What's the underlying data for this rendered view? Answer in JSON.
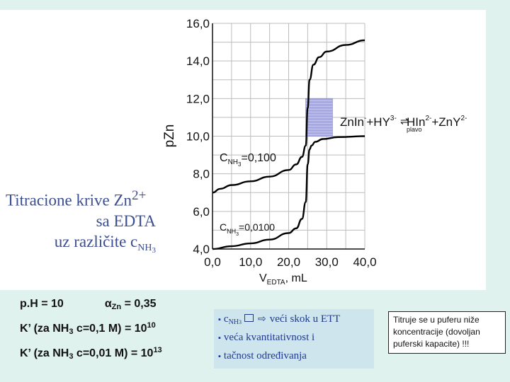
{
  "chart_data": {
    "type": "line",
    "xlabel": "V",
    "xlabel_sub": "EDTA",
    "xlabel_unit": ", mL",
    "ylabel": "pZn",
    "xlim": [
      0,
      40
    ],
    "ylim": [
      4,
      16
    ],
    "x_ticks": [
      "0,0",
      "10,0",
      "20,0",
      "30,0",
      "40,0"
    ],
    "y_ticks": [
      "4,0",
      "6,0",
      "8,0",
      "10,0",
      "12,0",
      "14,0",
      "16,0"
    ],
    "grid": true,
    "series": [
      {
        "name": "C NH3 = 0,100",
        "label_main": "C",
        "label_sub": "NH",
        "label_subsub": "3",
        "label_value": "=0,100",
        "x": [
          0,
          2,
          5,
          10,
          15,
          20,
          22,
          23.5,
          24.5,
          25,
          25.5,
          26.5,
          28,
          30,
          35,
          40
        ],
        "y": [
          7.0,
          7.2,
          7.4,
          7.6,
          7.85,
          8.2,
          8.5,
          8.9,
          9.5,
          11.5,
          13.0,
          13.8,
          14.2,
          14.5,
          14.85,
          15.1
        ]
      },
      {
        "name": "C NH3 = 0,0100",
        "label_main": "C",
        "label_sub": "NH",
        "label_subsub": "3",
        "label_value": "=0,0100",
        "x": [
          0,
          5,
          10,
          15,
          20,
          22,
          23.5,
          24.5,
          25,
          25.5,
          26,
          27,
          29,
          33,
          40
        ],
        "y": [
          4.0,
          4.15,
          4.3,
          4.5,
          4.85,
          5.1,
          5.6,
          6.5,
          8.5,
          9.3,
          9.5,
          9.7,
          9.85,
          9.95,
          10.0
        ]
      }
    ],
    "indicator_band": {
      "x": [
        24.5,
        31.5
      ],
      "y": [
        10.0,
        12.0
      ]
    },
    "annotation": {
      "reactant1": "ZnIn",
      "reactant1_charge": "-",
      "plus1": "+HY",
      "reactant2_charge": "3-",
      "product1": "HIn",
      "product1_charge": "2-",
      "plus2": "+ZnY",
      "product2_charge": "2-",
      "color_note": "plavo"
    }
  },
  "title": {
    "line1": "Titracione krive Zn",
    "line1_sup": "2+",
    "line2": "sa EDTA",
    "line3": "uz različite c",
    "line3_sub": "NH",
    "line3_subsub": "3"
  },
  "notes": {
    "ph": "p.H = 10",
    "alpha": "α",
    "alpha_sub": "Zn",
    "alpha_value": "= 0,35",
    "k1_prefix": "K’  (za NH",
    "k1_sub": "3",
    "k1_mid": "c=0,1 M) = 10",
    "k1_sup": "10",
    "k2_prefix": "K’  (za NH",
    "k2_sub": "3",
    "k2_mid": "c=0,01 M) = 10",
    "k2_sup": "13"
  },
  "bullets": {
    "b1_prefix": "c",
    "b1_sub": "NH",
    "b1_subsub": "3",
    "b1_text": "veći skok u ETT",
    "b2": "veća kvantitativnost i",
    "b3": "tačnost određivanja"
  },
  "note_box": {
    "line1": "Titruje se u puferu niže",
    "line2": "koncentracije (dovoljan",
    "line3": "puferski kapacite) !!!"
  }
}
